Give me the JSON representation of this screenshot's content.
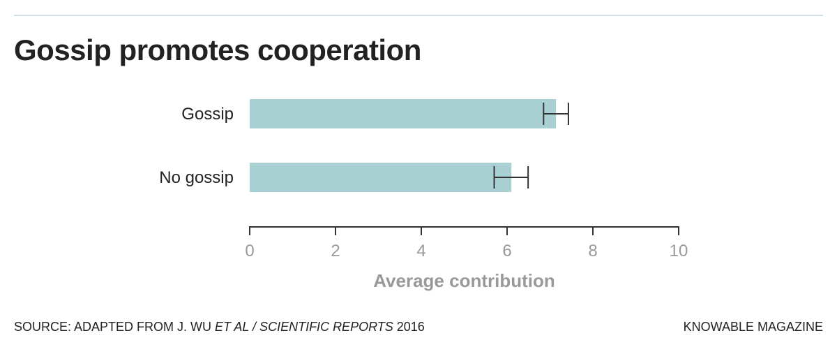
{
  "chart_data": {
    "type": "bar",
    "orientation": "horizontal",
    "title": "Gossip promotes cooperation",
    "categories": [
      "Gossip",
      "No gossip"
    ],
    "values": [
      7.14,
      6.1
    ],
    "error_low": [
      6.85,
      5.7
    ],
    "error_high": [
      7.43,
      6.49
    ],
    "xlabel": "Average contribution",
    "ylabel": "",
    "xlim": [
      0,
      10
    ],
    "xticks": [
      "0",
      "2",
      "4",
      "6",
      "8",
      "10"
    ],
    "grid": false,
    "bar_color": "#a9d1d4"
  },
  "footer": {
    "source_prefix": "SOURCE: ADAPTED FROM J. WU ",
    "source_italic": "ET AL / SCIENTIFIC REPORTS",
    "source_suffix": " 2016",
    "brand": "KNOWABLE MAGAZINE"
  }
}
